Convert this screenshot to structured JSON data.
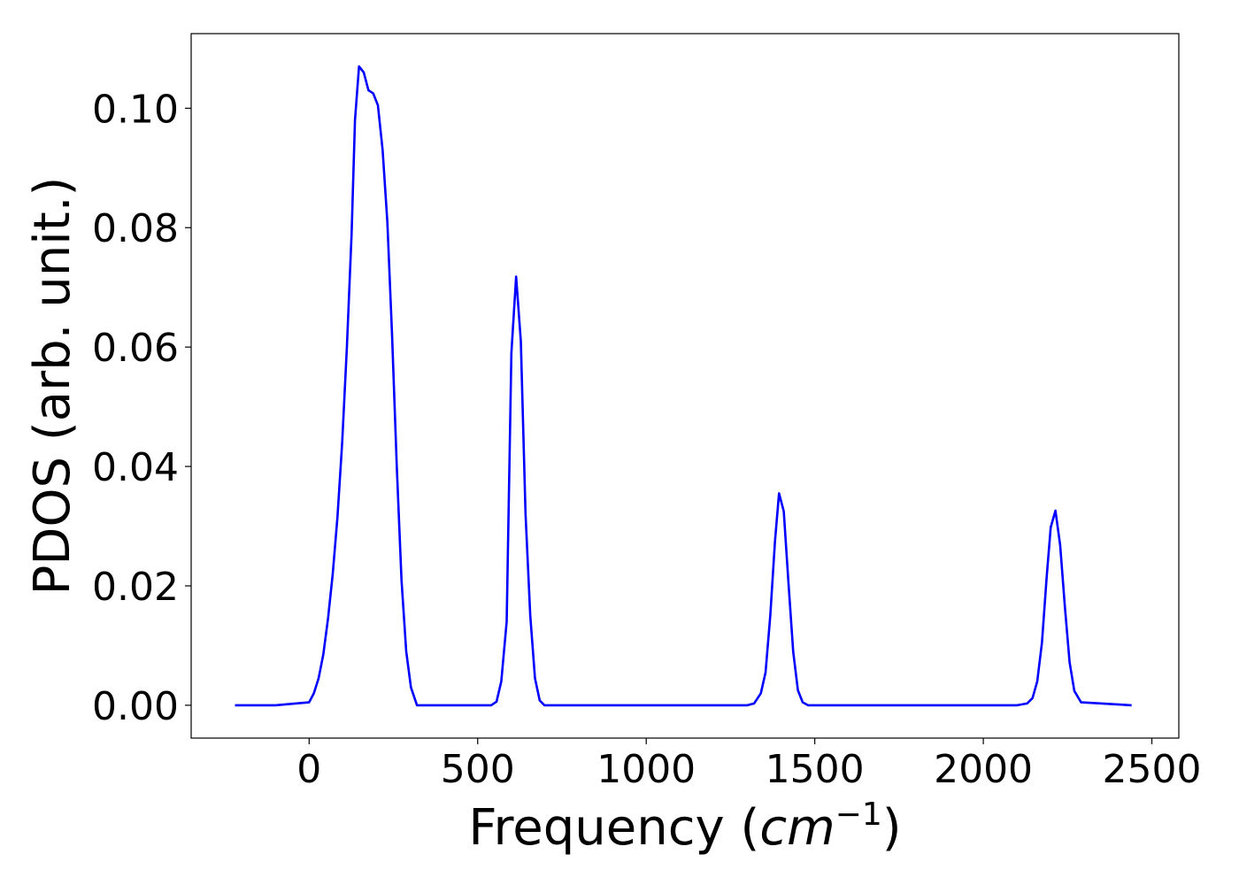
{
  "chart_data": {
    "type": "line",
    "xlabel": "Frequency (",
    "xlabel_math": "cm",
    "xlabel_sup": "−1",
    "xlabel_close": ")",
    "ylabel": "PDOS (arb. unit.)",
    "xlim": [
      -350,
      2580
    ],
    "ylim": [
      -0.0055,
      0.1125
    ],
    "x_ticks": [
      0,
      500,
      1000,
      1500,
      2000,
      2500
    ],
    "x_tick_labels": [
      "0",
      "500",
      "1000",
      "1500",
      "2000",
      "2500"
    ],
    "y_ticks": [
      0.0,
      0.02,
      0.04,
      0.06,
      0.08,
      0.1
    ],
    "y_tick_labels": [
      "0.00",
      "0.02",
      "0.04",
      "0.06",
      "0.08",
      "0.10"
    ],
    "grid": false,
    "series": [
      {
        "color": "#0000ff",
        "x": [
          -220,
          -100,
          0,
          14,
          28,
          42,
          56,
          70,
          84,
          98,
          112,
          126,
          136,
          148,
          162,
          176,
          190,
          204,
          218,
          232,
          246,
          260,
          274,
          288,
          302,
          320,
          400,
          500,
          540,
          556,
          570,
          586,
          600,
          614,
          628,
          642,
          656,
          670,
          684,
          698,
          720,
          800,
          1000,
          1200,
          1300,
          1320,
          1340,
          1354,
          1368,
          1382,
          1394,
          1408,
          1422,
          1436,
          1450,
          1464,
          1480,
          1600,
          1800,
          2000,
          2100,
          2130,
          2146,
          2160,
          2174,
          2188,
          2200,
          2214,
          2228,
          2242,
          2256,
          2270,
          2290,
          2440
        ],
        "y": [
          0.0,
          0.0,
          0.0005,
          0.002,
          0.0045,
          0.0085,
          0.0145,
          0.022,
          0.0315,
          0.044,
          0.06,
          0.079,
          0.098,
          0.107,
          0.106,
          0.103,
          0.1025,
          0.1005,
          0.093,
          0.081,
          0.062,
          0.04,
          0.021,
          0.009,
          0.003,
          0.0,
          0.0,
          0.0,
          0.0,
          0.0006,
          0.004,
          0.014,
          0.059,
          0.0718,
          0.061,
          0.032,
          0.015,
          0.0045,
          0.0008,
          0.0,
          0.0,
          0.0,
          0.0,
          0.0,
          0.0,
          0.0003,
          0.002,
          0.0055,
          0.015,
          0.0275,
          0.0355,
          0.0325,
          0.0205,
          0.009,
          0.0025,
          0.0005,
          0.0,
          0.0,
          0.0,
          0.0,
          0.0,
          0.0003,
          0.0012,
          0.004,
          0.0105,
          0.0215,
          0.0298,
          0.0326,
          0.0268,
          0.0165,
          0.0072,
          0.0024,
          0.0005,
          0.0
        ]
      }
    ]
  }
}
